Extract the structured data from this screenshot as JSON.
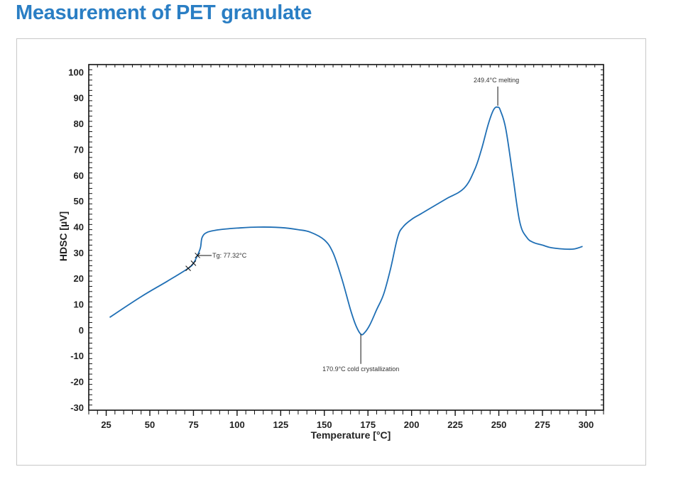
{
  "page": {
    "title": "Measurement of PET granulate"
  },
  "chart_data": {
    "type": "line",
    "title": "",
    "xlabel": "Temperature [°C]",
    "ylabel": "HDSC [µV]",
    "xlim": [
      15,
      310
    ],
    "ylim": [
      -31,
      103
    ],
    "xticks": [
      25,
      50,
      75,
      100,
      125,
      150,
      175,
      200,
      225,
      250,
      275,
      300
    ],
    "yticks": [
      -30,
      -20,
      -10,
      0,
      10,
      20,
      30,
      40,
      50,
      60,
      70,
      80,
      90,
      100
    ],
    "xtick_labels": [
      "25",
      "50",
      "75",
      "100",
      "125",
      "150",
      "175",
      "200",
      "225",
      "250",
      "275",
      "300"
    ],
    "ytick_labels": [
      "-30",
      "-20",
      "-10",
      "0",
      "10",
      "20",
      "30",
      "40",
      "50",
      "60",
      "70",
      "80",
      "90",
      "100"
    ],
    "grid": false,
    "series": [
      {
        "name": "HDSC",
        "color": "#1f6fb5",
        "x": [
          27,
          45,
          60,
          72,
          75,
          77.3,
          79,
          80,
          83,
          90,
          100,
          112,
          125,
          135,
          142,
          150,
          155,
          160,
          165,
          168,
          170.9,
          173,
          176,
          180,
          184,
          188,
          192,
          195,
          200,
          205,
          210,
          220,
          230,
          236,
          240,
          244,
          247,
          249.4,
          251,
          254,
          258,
          262,
          266,
          270,
          275,
          280,
          287,
          293,
          298
        ],
        "y": [
          5,
          13,
          19,
          24,
          26,
          29,
          32,
          36,
          38,
          39,
          39.6,
          40,
          39.8,
          39,
          38,
          35,
          30,
          20,
          8,
          2,
          -1.5,
          -1,
          2,
          8,
          14,
          24,
          36,
          40,
          43,
          45,
          47,
          51,
          55,
          62,
          70,
          80,
          85.5,
          86.5,
          85,
          78,
          60,
          42,
          36,
          34,
          33,
          32,
          31.5,
          31.5,
          32.5
        ]
      }
    ],
    "markers": [
      {
        "label": "x",
        "x": 72,
        "y": 24
      },
      {
        "label": "x",
        "x": 75,
        "y": 26
      },
      {
        "label": "x",
        "x": 77.3,
        "y": 29
      }
    ],
    "annotations": [
      {
        "text": "Tg: 77.32°C",
        "x": 77.3,
        "y": 29,
        "placement": "right"
      },
      {
        "text": "170.9°C cold crystallization",
        "x": 170.9,
        "y": -1.5,
        "placement": "below"
      },
      {
        "text": "249.4°C melting",
        "x": 249.4,
        "y": 86.5,
        "placement": "above"
      }
    ]
  }
}
